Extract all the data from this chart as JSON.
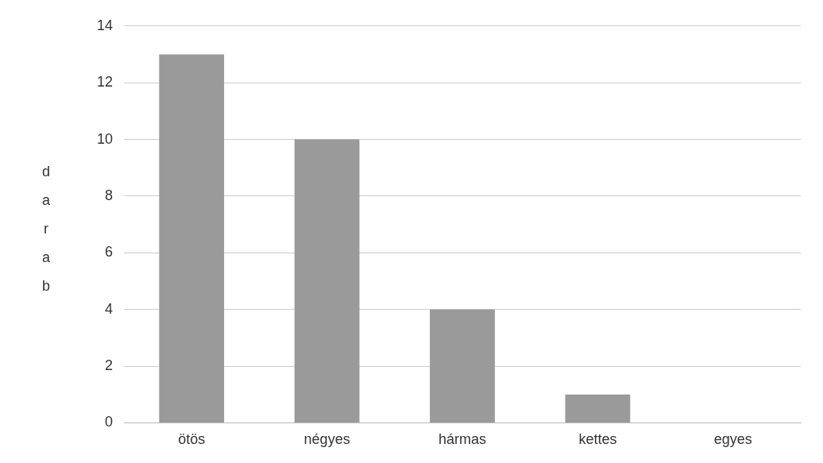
{
  "chart_data": {
    "type": "bar",
    "ylabel": "darab",
    "categories": [
      "ötös",
      "négyes",
      "hármas",
      "kettes",
      "egyes"
    ],
    "values": [
      13,
      10,
      4,
      1,
      0
    ],
    "color": "#9a9a9a",
    "ylim": [
      0,
      14
    ],
    "yticks": [
      0,
      2,
      4,
      6,
      8,
      10,
      12,
      14
    ],
    "grid": "y"
  }
}
